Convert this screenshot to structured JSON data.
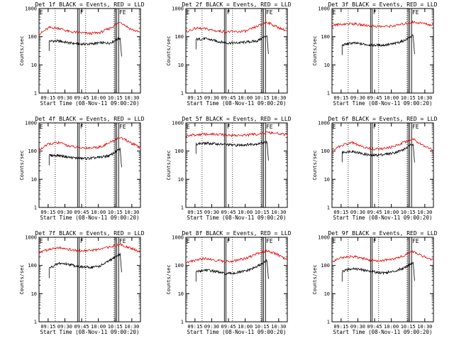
{
  "chart_data": [
    {
      "type": "line",
      "title": "Det 1f BLACK = Events, RED = LLD",
      "xlabel": "Start Time (08-Nov-11 09:00:20)",
      "ylabel": "Counts/sec",
      "x_ticks": [
        "09:15",
        "09:30",
        "09:45",
        "10:00",
        "10:15",
        "10:30"
      ],
      "y_ticks": [
        "1",
        "10",
        "100",
        "1000"
      ],
      "ylim": [
        1,
        1000
      ],
      "flags": [
        "E",
        "F",
        "FE"
      ],
      "series": [
        {
          "name": "Events",
          "color": "#000000",
          "x": [
            0.1,
            0.2,
            0.3,
            0.4,
            0.5,
            0.6,
            0.7,
            0.8
          ],
          "values": [
            70,
            70,
            60,
            55,
            55,
            60,
            60,
            90
          ]
        },
        {
          "name": "LLD",
          "color": "#e00000",
          "x": [
            0,
            0.1,
            0.2,
            0.3,
            0.4,
            0.5,
            0.6,
            0.7,
            0.8,
            0.9,
            1.0
          ],
          "values": [
            120,
            210,
            200,
            150,
            140,
            130,
            140,
            200,
            340,
            190,
            140
          ]
        }
      ]
    },
    {
      "type": "line",
      "title": "Det 2f BLACK = Events, RED = LLD",
      "xlabel": "Start Time (08-Nov-11 09:00:20)",
      "ylabel": "Counts/sec",
      "x_ticks": [
        "09:15",
        "09:30",
        "09:45",
        "10:00",
        "10:15",
        "10:30"
      ],
      "y_ticks": [
        "1",
        "10",
        "100",
        "1000"
      ],
      "ylim": [
        1,
        1000
      ],
      "flags": [
        "E",
        "F",
        "FE"
      ],
      "series": [
        {
          "name": "Events",
          "color": "#000000",
          "x": [
            0.1,
            0.2,
            0.3,
            0.4,
            0.5,
            0.6,
            0.7,
            0.8
          ],
          "values": [
            80,
            85,
            70,
            60,
            60,
            65,
            70,
            110
          ]
        },
        {
          "name": "LLD",
          "color": "#e00000",
          "x": [
            0,
            0.1,
            0.2,
            0.3,
            0.4,
            0.5,
            0.6,
            0.7,
            0.8,
            0.9,
            1.0
          ],
          "values": [
            150,
            200,
            190,
            160,
            150,
            150,
            160,
            230,
            330,
            220,
            160
          ]
        }
      ]
    },
    {
      "type": "line",
      "title": "Det 3f BLACK = Events, RED = LLD",
      "xlabel": "Start Time (08-Nov-11 09:00:20)",
      "ylabel": "Counts/sec",
      "x_ticks": [
        "09:15",
        "09:30",
        "09:45",
        "10:00",
        "10:15",
        "10:30"
      ],
      "y_ticks": [
        "1",
        "10",
        "100",
        "1000"
      ],
      "ylim": [
        1,
        1000
      ],
      "flags": [
        "E",
        "F",
        "FE"
      ],
      "series": [
        {
          "name": "Events",
          "color": "#000000",
          "x": [
            0.1,
            0.2,
            0.3,
            0.4,
            0.5,
            0.6,
            0.7,
            0.8
          ],
          "values": [
            50,
            60,
            55,
            50,
            50,
            55,
            70,
            110
          ]
        },
        {
          "name": "LLD",
          "color": "#e00000",
          "x": [
            0,
            0.1,
            0.2,
            0.3,
            0.4,
            0.5,
            0.6,
            0.7,
            0.8,
            0.9,
            1.0
          ],
          "values": [
            250,
            280,
            290,
            260,
            240,
            230,
            240,
            280,
            330,
            300,
            250
          ]
        }
      ]
    },
    {
      "type": "line",
      "title": "Det 4f BLACK = Events, RED = LLD",
      "xlabel": "Start Time (08-Nov-11 09:00:20)",
      "ylabel": "Counts/sec",
      "x_ticks": [
        "09:15",
        "09:30",
        "09:45",
        "10:00",
        "10:15",
        "10:30"
      ],
      "y_ticks": [
        "1",
        "10",
        "100",
        "1000"
      ],
      "ylim": [
        1,
        1000
      ],
      "flags": [
        "E",
        "F",
        "FE"
      ],
      "series": [
        {
          "name": "Events",
          "color": "#000000",
          "x": [
            0.1,
            0.2,
            0.3,
            0.4,
            0.5,
            0.6,
            0.7,
            0.8
          ],
          "values": [
            70,
            70,
            60,
            55,
            55,
            60,
            70,
            120
          ]
        },
        {
          "name": "LLD",
          "color": "#e00000",
          "x": [
            0,
            0.1,
            0.2,
            0.3,
            0.4,
            0.5,
            0.6,
            0.7,
            0.8,
            0.9,
            1.0
          ],
          "values": [
            110,
            180,
            200,
            150,
            130,
            130,
            140,
            200,
            310,
            200,
            130
          ]
        }
      ]
    },
    {
      "type": "line",
      "title": "Det 5f BLACK = Events, RED = LLD",
      "xlabel": "Start Time (08-Nov-11 09:00:20)",
      "ylabel": "Counts/sec",
      "x_ticks": [
        "09:15",
        "09:30",
        "09:45",
        "10:00",
        "10:15",
        "10:30"
      ],
      "y_ticks": [
        "1",
        "10",
        "100",
        "1000"
      ],
      "ylim": [
        1,
        1000
      ],
      "flags": [
        "E",
        "F",
        "FE"
      ],
      "series": [
        {
          "name": "Events",
          "color": "#000000",
          "x": [
            0.1,
            0.2,
            0.3,
            0.4,
            0.5,
            0.6,
            0.7,
            0.8
          ],
          "values": [
            180,
            190,
            180,
            170,
            160,
            170,
            180,
            210
          ]
        },
        {
          "name": "LLD",
          "color": "#e00000",
          "x": [
            0,
            0.1,
            0.2,
            0.3,
            0.4,
            0.5,
            0.6,
            0.7,
            0.8,
            0.9,
            1.0
          ],
          "values": [
            350,
            380,
            400,
            390,
            370,
            360,
            370,
            400,
            450,
            420,
            380
          ]
        }
      ]
    },
    {
      "type": "line",
      "title": "Det 6f BLACK = Events, RED = LLD",
      "xlabel": "Start Time (08-Nov-11 09:00:20)",
      "ylabel": "Counts/sec",
      "x_ticks": [
        "09:15",
        "09:30",
        "09:45",
        "10:00",
        "10:15",
        "10:30"
      ],
      "y_ticks": [
        "1",
        "10",
        "100",
        "1000"
      ],
      "ylim": [
        1,
        1000
      ],
      "flags": [
        "E",
        "F",
        "FE"
      ],
      "series": [
        {
          "name": "Events",
          "color": "#000000",
          "x": [
            0.1,
            0.2,
            0.3,
            0.4,
            0.5,
            0.6,
            0.7,
            0.8
          ],
          "values": [
            90,
            100,
            80,
            70,
            75,
            85,
            110,
            180
          ]
        },
        {
          "name": "LLD",
          "color": "#e00000",
          "x": [
            0,
            0.1,
            0.2,
            0.3,
            0.4,
            0.5,
            0.6,
            0.7,
            0.8,
            0.9,
            1.0
          ],
          "values": [
            110,
            160,
            200,
            140,
            120,
            120,
            140,
            200,
            270,
            160,
            110
          ]
        }
      ]
    },
    {
      "type": "line",
      "title": "Det 7f BLACK = Events, RED = LLD",
      "xlabel": "Start Time (08-Nov-11 09:00:20)",
      "ylabel": "Counts/sec",
      "x_ticks": [
        "09:15",
        "09:30",
        "09:45",
        "10:00",
        "10:15",
        "10:30"
      ],
      "y_ticks": [
        "1",
        "10",
        "100",
        "1000"
      ],
      "ylim": [
        1,
        1000
      ],
      "flags": [
        "E",
        "F",
        "FE"
      ],
      "series": [
        {
          "name": "Events",
          "color": "#000000",
          "x": [
            0.1,
            0.2,
            0.3,
            0.4,
            0.5,
            0.6,
            0.7,
            0.8
          ],
          "values": [
            80,
            120,
            110,
            90,
            85,
            95,
            150,
            260
          ]
        },
        {
          "name": "LLD",
          "color": "#e00000",
          "x": [
            0,
            0.1,
            0.2,
            0.3,
            0.4,
            0.5,
            0.6,
            0.7,
            0.8,
            0.9,
            1.0
          ],
          "values": [
            280,
            380,
            440,
            370,
            330,
            340,
            370,
            460,
            560,
            420,
            300
          ]
        }
      ]
    },
    {
      "type": "line",
      "title": "Det 8f BLACK = Events, RED = LLD",
      "xlabel": "Start Time (08-Nov-11 09:00:20)",
      "ylabel": "Counts/sec",
      "x_ticks": [
        "09:15",
        "09:30",
        "09:45",
        "10:00",
        "10:15",
        "10:30"
      ],
      "y_ticks": [
        "1",
        "10",
        "100",
        "1000"
      ],
      "ylim": [
        1,
        1000
      ],
      "flags": [
        "E",
        "F",
        "FE"
      ],
      "series": [
        {
          "name": "Events",
          "color": "#000000",
          "x": [
            0.1,
            0.2,
            0.3,
            0.4,
            0.5,
            0.6,
            0.7,
            0.8
          ],
          "values": [
            60,
            70,
            60,
            50,
            55,
            65,
            90,
            150
          ]
        },
        {
          "name": "LLD",
          "color": "#e00000",
          "x": [
            0,
            0.1,
            0.2,
            0.3,
            0.4,
            0.5,
            0.6,
            0.7,
            0.8,
            0.9,
            1.0
          ],
          "values": [
            120,
            160,
            180,
            150,
            140,
            150,
            180,
            260,
            330,
            250,
            150
          ]
        }
      ]
    },
    {
      "type": "line",
      "title": "Det 9f BLACK = Events, RED = LLD",
      "xlabel": "Start Time (08-Nov-11 09:00:20)",
      "ylabel": "Counts/sec",
      "x_ticks": [
        "09:15",
        "09:30",
        "09:45",
        "10:00",
        "10:15",
        "10:30"
      ],
      "y_ticks": [
        "1",
        "10",
        "100",
        "1000"
      ],
      "ylim": [
        1,
        1000
      ],
      "flags": [
        "E",
        "F",
        "FE"
      ],
      "series": [
        {
          "name": "Events",
          "color": "#000000",
          "x": [
            0.1,
            0.2,
            0.3,
            0.4,
            0.5,
            0.6,
            0.7,
            0.8
          ],
          "values": [
            60,
            80,
            70,
            60,
            55,
            60,
            80,
            130
          ]
        },
        {
          "name": "LLD",
          "color": "#e00000",
          "x": [
            0,
            0.1,
            0.2,
            0.3,
            0.4,
            0.5,
            0.6,
            0.7,
            0.8,
            0.9,
            1.0
          ],
          "values": [
            140,
            190,
            210,
            180,
            150,
            150,
            170,
            220,
            310,
            210,
            150
          ]
        }
      ]
    }
  ]
}
